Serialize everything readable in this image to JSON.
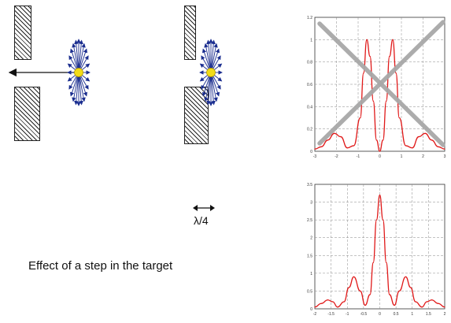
{
  "caption": "Effect of a step in the target",
  "step_label": "λ/4",
  "colors": {
    "emitter": "#f2dc18",
    "arrows": "#1a2d8f",
    "hatch": "#222222",
    "curve": "#e01818",
    "cross": "#a8a8a8"
  },
  "chart_data": [
    {
      "type": "line",
      "title": "",
      "xlabel": "",
      "ylabel": "",
      "xlim": [
        -3,
        3
      ],
      "ylim": [
        0,
        1.2
      ],
      "x_ticks": [
        "-3",
        "-2",
        "-1",
        "0",
        "1",
        "2",
        "3"
      ],
      "y_ticks": [
        "0",
        "0.2",
        "0.4",
        "0.6",
        "0.8",
        "1",
        "1.2"
      ],
      "grid": true,
      "annotation": "large grey X drawn over the plot",
      "series": [
        {
          "name": "",
          "x": [
            -3.0,
            -2.7,
            -2.4,
            -2.1,
            -1.8,
            -1.5,
            -1.2,
            -0.9,
            -0.75,
            -0.6,
            -0.45,
            -0.3,
            -0.15,
            0.0,
            0.15,
            0.3,
            0.45,
            0.6,
            0.75,
            0.9,
            1.2,
            1.5,
            1.8,
            2.1,
            2.4,
            2.7,
            3.0
          ],
          "y": [
            0.02,
            0.04,
            0.1,
            0.16,
            0.13,
            0.03,
            0.05,
            0.3,
            0.7,
            1.0,
            0.85,
            0.45,
            0.1,
            0.0,
            0.1,
            0.45,
            0.85,
            1.0,
            0.7,
            0.3,
            0.05,
            0.03,
            0.13,
            0.16,
            0.1,
            0.04,
            0.02
          ]
        }
      ]
    },
    {
      "type": "line",
      "title": "",
      "xlabel": "",
      "ylabel": "",
      "xlim": [
        -2,
        2
      ],
      "ylim": [
        0,
        3.5
      ],
      "x_ticks": [
        "-2",
        "-1.5",
        "-1",
        "-0.5",
        "0",
        "0.5",
        "1",
        "1.5",
        "2"
      ],
      "y_ticks": [
        "0",
        "0.5",
        "1",
        "1.5",
        "2",
        "2.5",
        "3",
        "3.5"
      ],
      "grid": true,
      "series": [
        {
          "name": "",
          "x": [
            -2.0,
            -1.8,
            -1.6,
            -1.45,
            -1.3,
            -1.1,
            -0.95,
            -0.8,
            -0.6,
            -0.45,
            -0.3,
            -0.2,
            -0.1,
            0.0,
            0.1,
            0.2,
            0.3,
            0.45,
            0.6,
            0.8,
            0.95,
            1.1,
            1.3,
            1.45,
            1.6,
            1.8,
            2.0
          ],
          "y": [
            0.05,
            0.15,
            0.25,
            0.2,
            0.05,
            0.2,
            0.6,
            0.9,
            0.5,
            0.1,
            0.4,
            1.3,
            2.5,
            3.2,
            2.5,
            1.3,
            0.4,
            0.1,
            0.5,
            0.9,
            0.6,
            0.2,
            0.05,
            0.2,
            0.25,
            0.15,
            0.05
          ]
        }
      ]
    }
  ]
}
